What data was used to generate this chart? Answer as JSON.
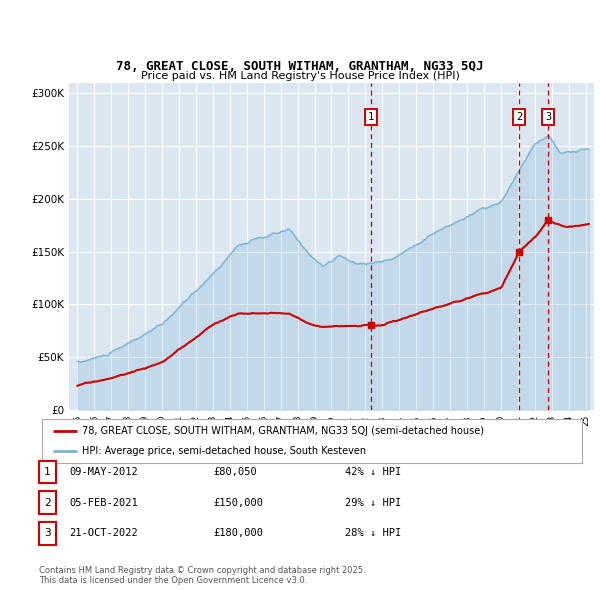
{
  "title1": "78, GREAT CLOSE, SOUTH WITHAM, GRANTHAM, NG33 5QJ",
  "title2": "Price paid vs. HM Land Registry's House Price Index (HPI)",
  "ylabel_ticks": [
    "£0",
    "£50K",
    "£100K",
    "£150K",
    "£200K",
    "£250K",
    "£300K"
  ],
  "ytick_values": [
    0,
    50000,
    100000,
    150000,
    200000,
    250000,
    300000
  ],
  "ylim": [
    0,
    310000
  ],
  "xlim_start": 1994.5,
  "xlim_end": 2025.5,
  "bg_color": "#dce6f1",
  "grid_color": "#ffffff",
  "sale_color": "#cc0000",
  "hpi_color": "#7ab3d4",
  "legend_sale_label": "78, GREAT CLOSE, SOUTH WITHAM, GRANTHAM, NG33 5QJ (semi-detached house)",
  "legend_hpi_label": "HPI: Average price, semi-detached house, South Kesteven",
  "sale_points": [
    {
      "year": 2012.35,
      "value": 80050,
      "label": "1"
    },
    {
      "year": 2021.09,
      "value": 150000,
      "label": "2"
    },
    {
      "year": 2022.8,
      "value": 180000,
      "label": "3"
    }
  ],
  "table_rows": [
    {
      "num": "1",
      "date": "09-MAY-2012",
      "price": "£80,050",
      "pct": "42% ↓ HPI"
    },
    {
      "num": "2",
      "date": "05-FEB-2021",
      "price": "£150,000",
      "pct": "29% ↓ HPI"
    },
    {
      "num": "3",
      "date": "21-OCT-2022",
      "price": "£180,000",
      "pct": "28% ↓ HPI"
    }
  ],
  "footer": "Contains HM Land Registry data © Crown copyright and database right 2025.\nThis data is licensed under the Open Government Licence v3.0."
}
